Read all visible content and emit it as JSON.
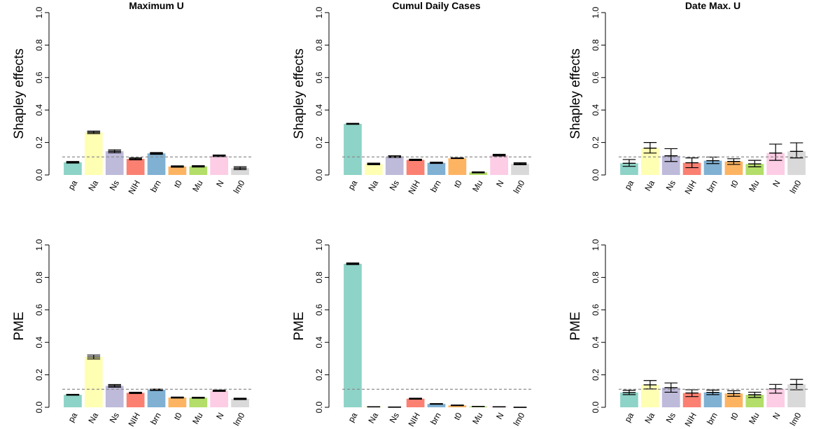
{
  "colors": {
    "pa": "#8dd3c7",
    "Na": "#ffffb3",
    "Ns": "#bebada",
    "NIH": "#fb8072",
    "brn": "#80b1d3",
    "t0": "#fdb462",
    "Mu": "#b3de69",
    "N": "#fccde5",
    "lm0": "#d9d9d9",
    "ref_line": "#8c8c8c"
  },
  "chart_data": [
    {
      "type": "bar",
      "title": "Maximum U",
      "ylabel": "Shapley effects",
      "ylim": [
        0,
        1
      ],
      "yticks": [
        "0.0",
        "0.2",
        "0.4",
        "0.6",
        "0.8",
        "1.0"
      ],
      "categories": [
        "pa",
        "Na",
        "Ns",
        "NIH",
        "brn",
        "t0",
        "Mu",
        "N",
        "lm0"
      ],
      "values": [
        0.078,
        0.262,
        0.146,
        0.099,
        0.133,
        0.052,
        0.053,
        0.118,
        0.042
      ],
      "lower": [
        0.073,
        0.255,
        0.137,
        0.093,
        0.127,
        0.048,
        0.049,
        0.113,
        0.033
      ],
      "upper": [
        0.083,
        0.27,
        0.155,
        0.105,
        0.138,
        0.056,
        0.057,
        0.123,
        0.051
      ],
      "reference_line": 0.111
    },
    {
      "type": "bar",
      "title": "Cumul Daily Cases",
      "ylabel": "Shapley effects",
      "ylim": [
        0,
        1
      ],
      "yticks": [
        "0.0",
        "0.2",
        "0.4",
        "0.6",
        "0.8",
        "1.0"
      ],
      "categories": [
        "pa",
        "Na",
        "Ns",
        "NIH",
        "brn",
        "t0",
        "Mu",
        "N",
        "lm0"
      ],
      "values": [
        0.315,
        0.068,
        0.113,
        0.093,
        0.075,
        0.103,
        0.016,
        0.122,
        0.069
      ],
      "lower": [
        0.312,
        0.063,
        0.108,
        0.089,
        0.071,
        0.101,
        0.013,
        0.117,
        0.063
      ],
      "upper": [
        0.318,
        0.073,
        0.118,
        0.097,
        0.079,
        0.105,
        0.019,
        0.127,
        0.075
      ],
      "reference_line": 0.111
    },
    {
      "type": "bar",
      "title": "Date Max. U",
      "ylabel": "Shapley effects",
      "ylim": [
        0,
        1
      ],
      "yticks": [
        "0.0",
        "0.2",
        "0.4",
        "0.6",
        "0.8",
        "1.0"
      ],
      "categories": [
        "pa",
        "Na",
        "Ns",
        "NIH",
        "brn",
        "t0",
        "Mu",
        "N",
        "lm0"
      ],
      "values": [
        0.072,
        0.165,
        0.118,
        0.075,
        0.088,
        0.083,
        0.068,
        0.135,
        0.145
      ],
      "lower": [
        0.053,
        0.135,
        0.083,
        0.045,
        0.07,
        0.065,
        0.05,
        0.09,
        0.105
      ],
      "upper": [
        0.095,
        0.2,
        0.162,
        0.105,
        0.11,
        0.1,
        0.09,
        0.19,
        0.198
      ],
      "reference_line": 0.111
    },
    {
      "type": "bar",
      "title": "",
      "ylabel": "PME",
      "ylim": [
        0,
        1
      ],
      "yticks": [
        "0.0",
        "0.2",
        "0.4",
        "0.6",
        "0.8",
        "1.0"
      ],
      "categories": [
        "pa",
        "Na",
        "Ns",
        "NIH",
        "brn",
        "t0",
        "Mu",
        "N",
        "lm0"
      ],
      "values": [
        0.077,
        0.31,
        0.132,
        0.089,
        0.108,
        0.06,
        0.059,
        0.102,
        0.052
      ],
      "lower": [
        0.074,
        0.298,
        0.124,
        0.085,
        0.104,
        0.057,
        0.056,
        0.098,
        0.048
      ],
      "upper": [
        0.08,
        0.322,
        0.14,
        0.093,
        0.112,
        0.063,
        0.062,
        0.106,
        0.056
      ],
      "reference_line": 0.111
    },
    {
      "type": "bar",
      "title": "",
      "ylabel": "PME",
      "ylim": [
        0,
        1
      ],
      "yticks": [
        "0.0",
        "0.2",
        "0.4",
        "0.6",
        "0.8",
        "1.0"
      ],
      "categories": [
        "pa",
        "Na",
        "Ns",
        "NIH",
        "brn",
        "t0",
        "Mu",
        "N",
        "lm0"
      ],
      "values": [
        0.884,
        0.003,
        0.001,
        0.053,
        0.021,
        0.012,
        0.005,
        0.003,
        0.0
      ],
      "lower": [
        0.879,
        0.002,
        0.0,
        0.05,
        0.019,
        0.01,
        0.004,
        0.002,
        0.0
      ],
      "upper": [
        0.889,
        0.004,
        0.002,
        0.056,
        0.023,
        0.014,
        0.006,
        0.004,
        0.0
      ],
      "reference_line": 0.111
    },
    {
      "type": "bar",
      "title": "",
      "ylabel": "PME",
      "ylim": [
        0,
        1
      ],
      "yticks": [
        "0.0",
        "0.2",
        "0.4",
        "0.6",
        "0.8",
        "1.0"
      ],
      "categories": [
        "pa",
        "Na",
        "Ns",
        "NIH",
        "brn",
        "t0",
        "Mu",
        "N",
        "lm0"
      ],
      "values": [
        0.091,
        0.138,
        0.121,
        0.088,
        0.092,
        0.085,
        0.077,
        0.114,
        0.141
      ],
      "lower": [
        0.078,
        0.113,
        0.093,
        0.066,
        0.078,
        0.068,
        0.061,
        0.087,
        0.108
      ],
      "upper": [
        0.105,
        0.165,
        0.15,
        0.108,
        0.106,
        0.102,
        0.093,
        0.141,
        0.172
      ],
      "reference_line": 0.111
    }
  ]
}
